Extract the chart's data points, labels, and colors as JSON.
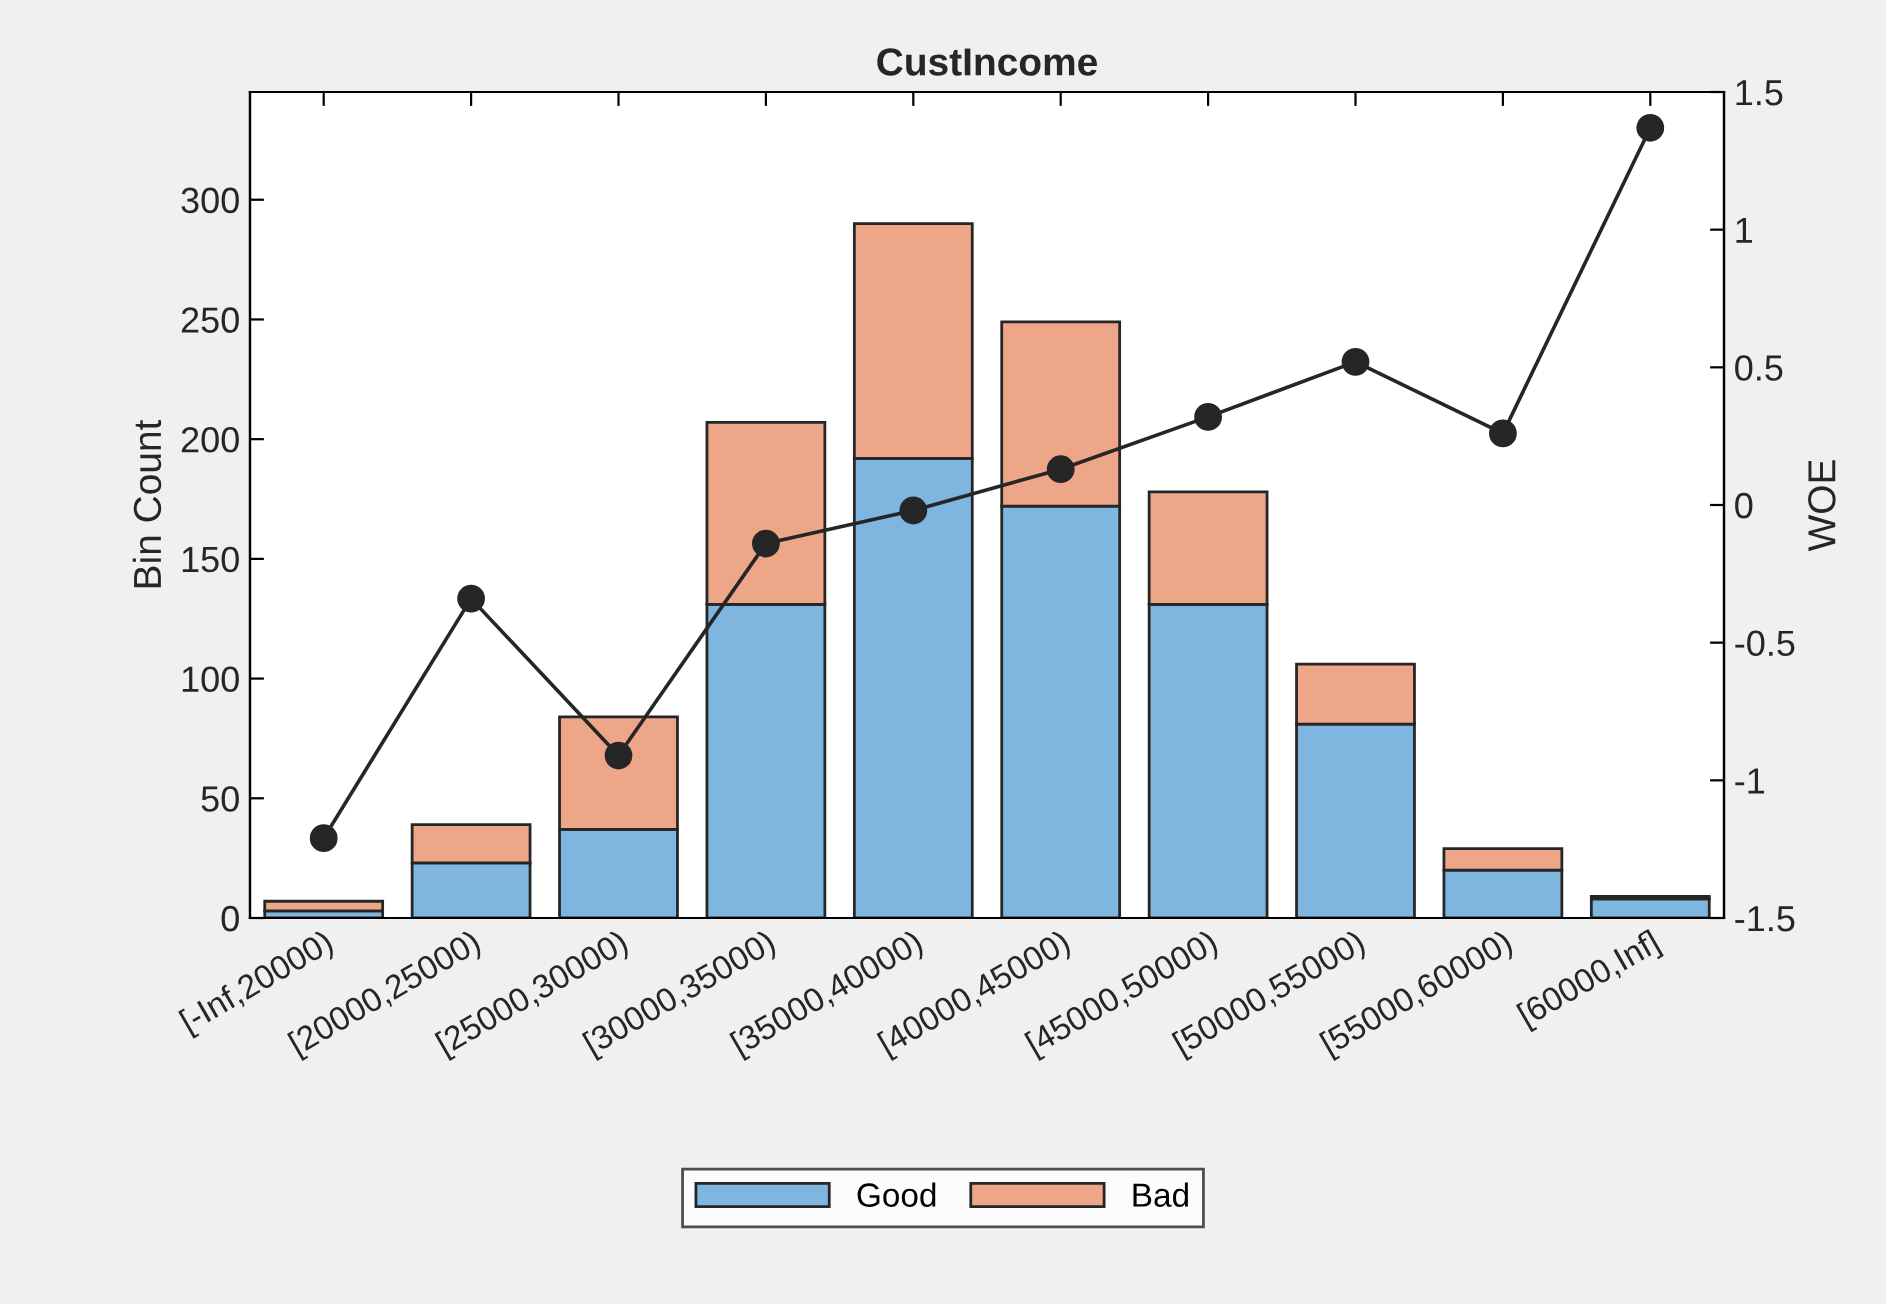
{
  "chart_data": {
    "type": "bar",
    "title": "CustIncome",
    "ylabel": "Bin Count",
    "y2label": "WOE",
    "categories": [
      "[-Inf,20000)",
      "[20000,25000)",
      "[25000,30000)",
      "[30000,35000)",
      "[35000,40000)",
      "[40000,45000)",
      "[45000,50000)",
      "[50000,55000)",
      "[55000,60000)",
      "[60000,Inf]"
    ],
    "stacked": true,
    "series": [
      {
        "name": "Good",
        "color": "#7eb6df",
        "values": [
          3,
          23,
          37,
          131,
          192,
          172,
          131,
          81,
          20,
          8
        ]
      },
      {
        "name": "Bad",
        "color": "#eda688",
        "values": [
          4,
          16,
          47,
          76,
          98,
          77,
          47,
          25,
          9,
          1
        ]
      },
      {
        "type": "line",
        "axis": "y2",
        "color": "#262626",
        "marker": "circle",
        "values": [
          -1.21,
          -0.34,
          -0.91,
          -0.14,
          -0.02,
          0.13,
          0.32,
          0.52,
          0.26,
          1.37
        ]
      }
    ],
    "ylim": [
      0,
      345
    ],
    "yticks": [
      0,
      50,
      100,
      150,
      200,
      250,
      300
    ],
    "y2lim": [
      -1.5,
      1.5
    ],
    "y2ticks": [
      -1.5,
      -1,
      -0.5,
      0,
      0.5,
      1,
      1.5
    ],
    "legend": "bottom",
    "grid": false
  }
}
